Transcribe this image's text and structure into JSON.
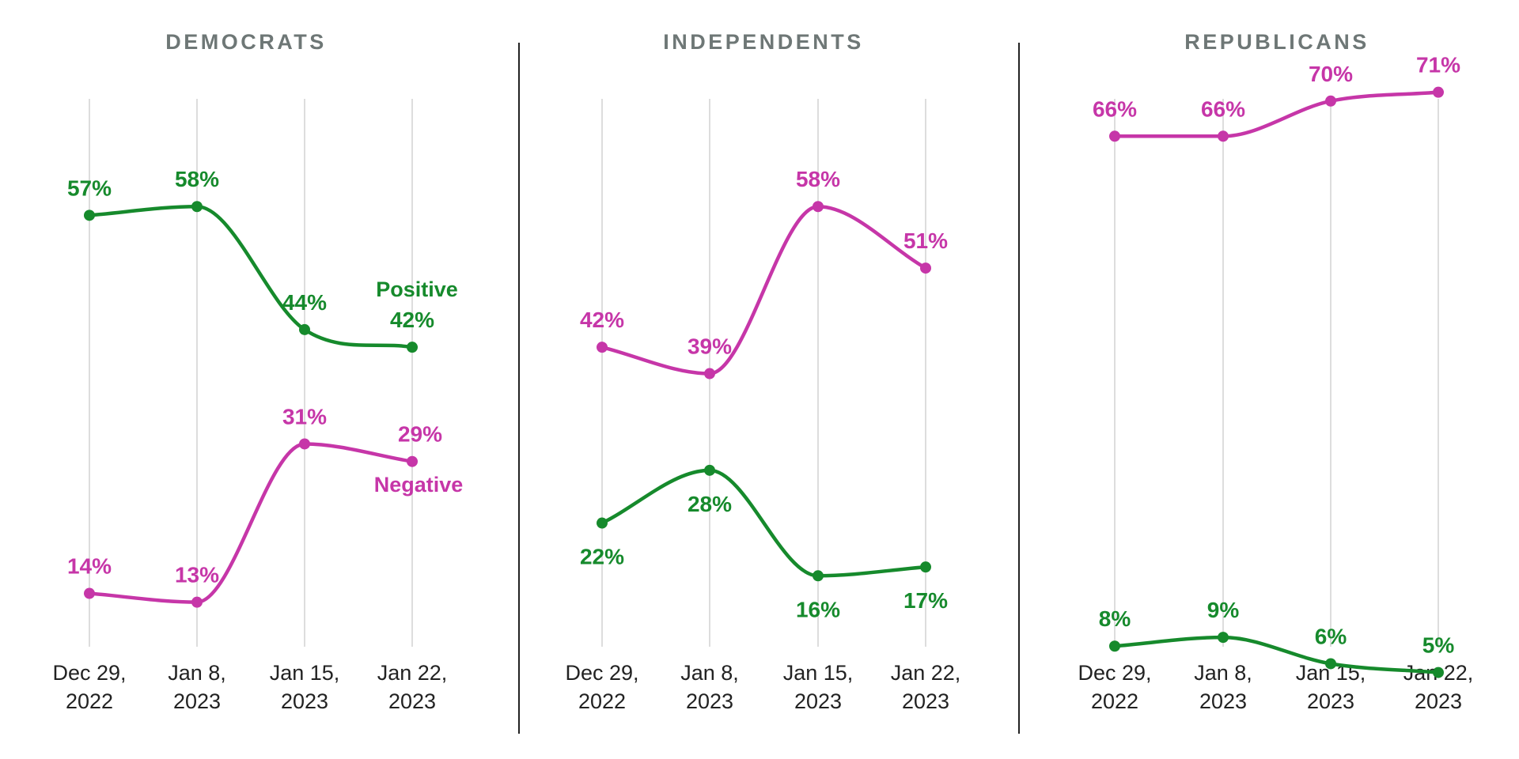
{
  "colors": {
    "positive": "#168a2c",
    "negative": "#c636a8",
    "title": "#6e7776",
    "grid": "#dddddd",
    "divider": "#222222",
    "tick": "#222222"
  },
  "chart_data": [
    {
      "type": "line",
      "title": "DEMOCRATS",
      "categories": [
        "Dec 29, 2022",
        "Jan 8, 2023",
        "Jan 15, 2023",
        "Jan 22, 2023"
      ],
      "category_lines": [
        [
          "Dec 29,",
          "2022"
        ],
        [
          "Jan 8,",
          "2023"
        ],
        [
          "Jan 15,",
          "2023"
        ],
        [
          "Jan 22,",
          "2023"
        ]
      ],
      "series": [
        {
          "name": "Positive",
          "color": "#168a2c",
          "values": [
            57,
            58,
            44,
            42
          ],
          "labels": [
            "57%",
            "58%",
            "44%",
            "42%"
          ]
        },
        {
          "name": "Negative",
          "color": "#c636a8",
          "values": [
            14,
            13,
            31,
            29
          ],
          "labels": [
            "14%",
            "13%",
            "31%",
            "29%"
          ]
        }
      ],
      "legend": "inline-right",
      "ylim": [
        0,
        80
      ],
      "grid": "vertical"
    },
    {
      "type": "line",
      "title": "INDEPENDENTS",
      "categories": [
        "Dec 29, 2022",
        "Jan 8, 2023",
        "Jan 15, 2023",
        "Jan 22, 2023"
      ],
      "category_lines": [
        [
          "Dec 29,",
          "2022"
        ],
        [
          "Jan 8,",
          "2023"
        ],
        [
          "Jan 15,",
          "2023"
        ],
        [
          "Jan 22,",
          "2023"
        ]
      ],
      "series": [
        {
          "color": "#168a2c",
          "values": [
            22,
            28,
            16,
            17
          ],
          "labels": [
            "22%",
            "28%",
            "16%",
            "17%"
          ]
        },
        {
          "color": "#c636a8",
          "values": [
            42,
            39,
            58,
            51
          ],
          "labels": [
            "42%",
            "39%",
            "58%",
            "51%"
          ]
        }
      ],
      "ylim": [
        0,
        80
      ],
      "grid": "vertical"
    },
    {
      "type": "line",
      "title": "REPUBLICANS",
      "categories": [
        "Dec 29, 2022",
        "Jan 8, 2023",
        "Jan 15, 2023",
        "Jan 22, 2023"
      ],
      "category_lines": [
        [
          "Dec 29,",
          "2022"
        ],
        [
          "Jan 8,",
          "2023"
        ],
        [
          "Jan 15,",
          "2023"
        ],
        [
          "Jan 22,",
          "2023"
        ]
      ],
      "series": [
        {
          "color": "#168a2c",
          "values": [
            8,
            9,
            6,
            5
          ],
          "labels": [
            "8%",
            "9%",
            "6%",
            "5%"
          ]
        },
        {
          "color": "#c636a8",
          "values": [
            66,
            66,
            70,
            71
          ],
          "labels": [
            "66%",
            "66%",
            "70%",
            "71%"
          ]
        }
      ],
      "ylim": [
        0,
        80
      ],
      "grid": "vertical"
    }
  ]
}
